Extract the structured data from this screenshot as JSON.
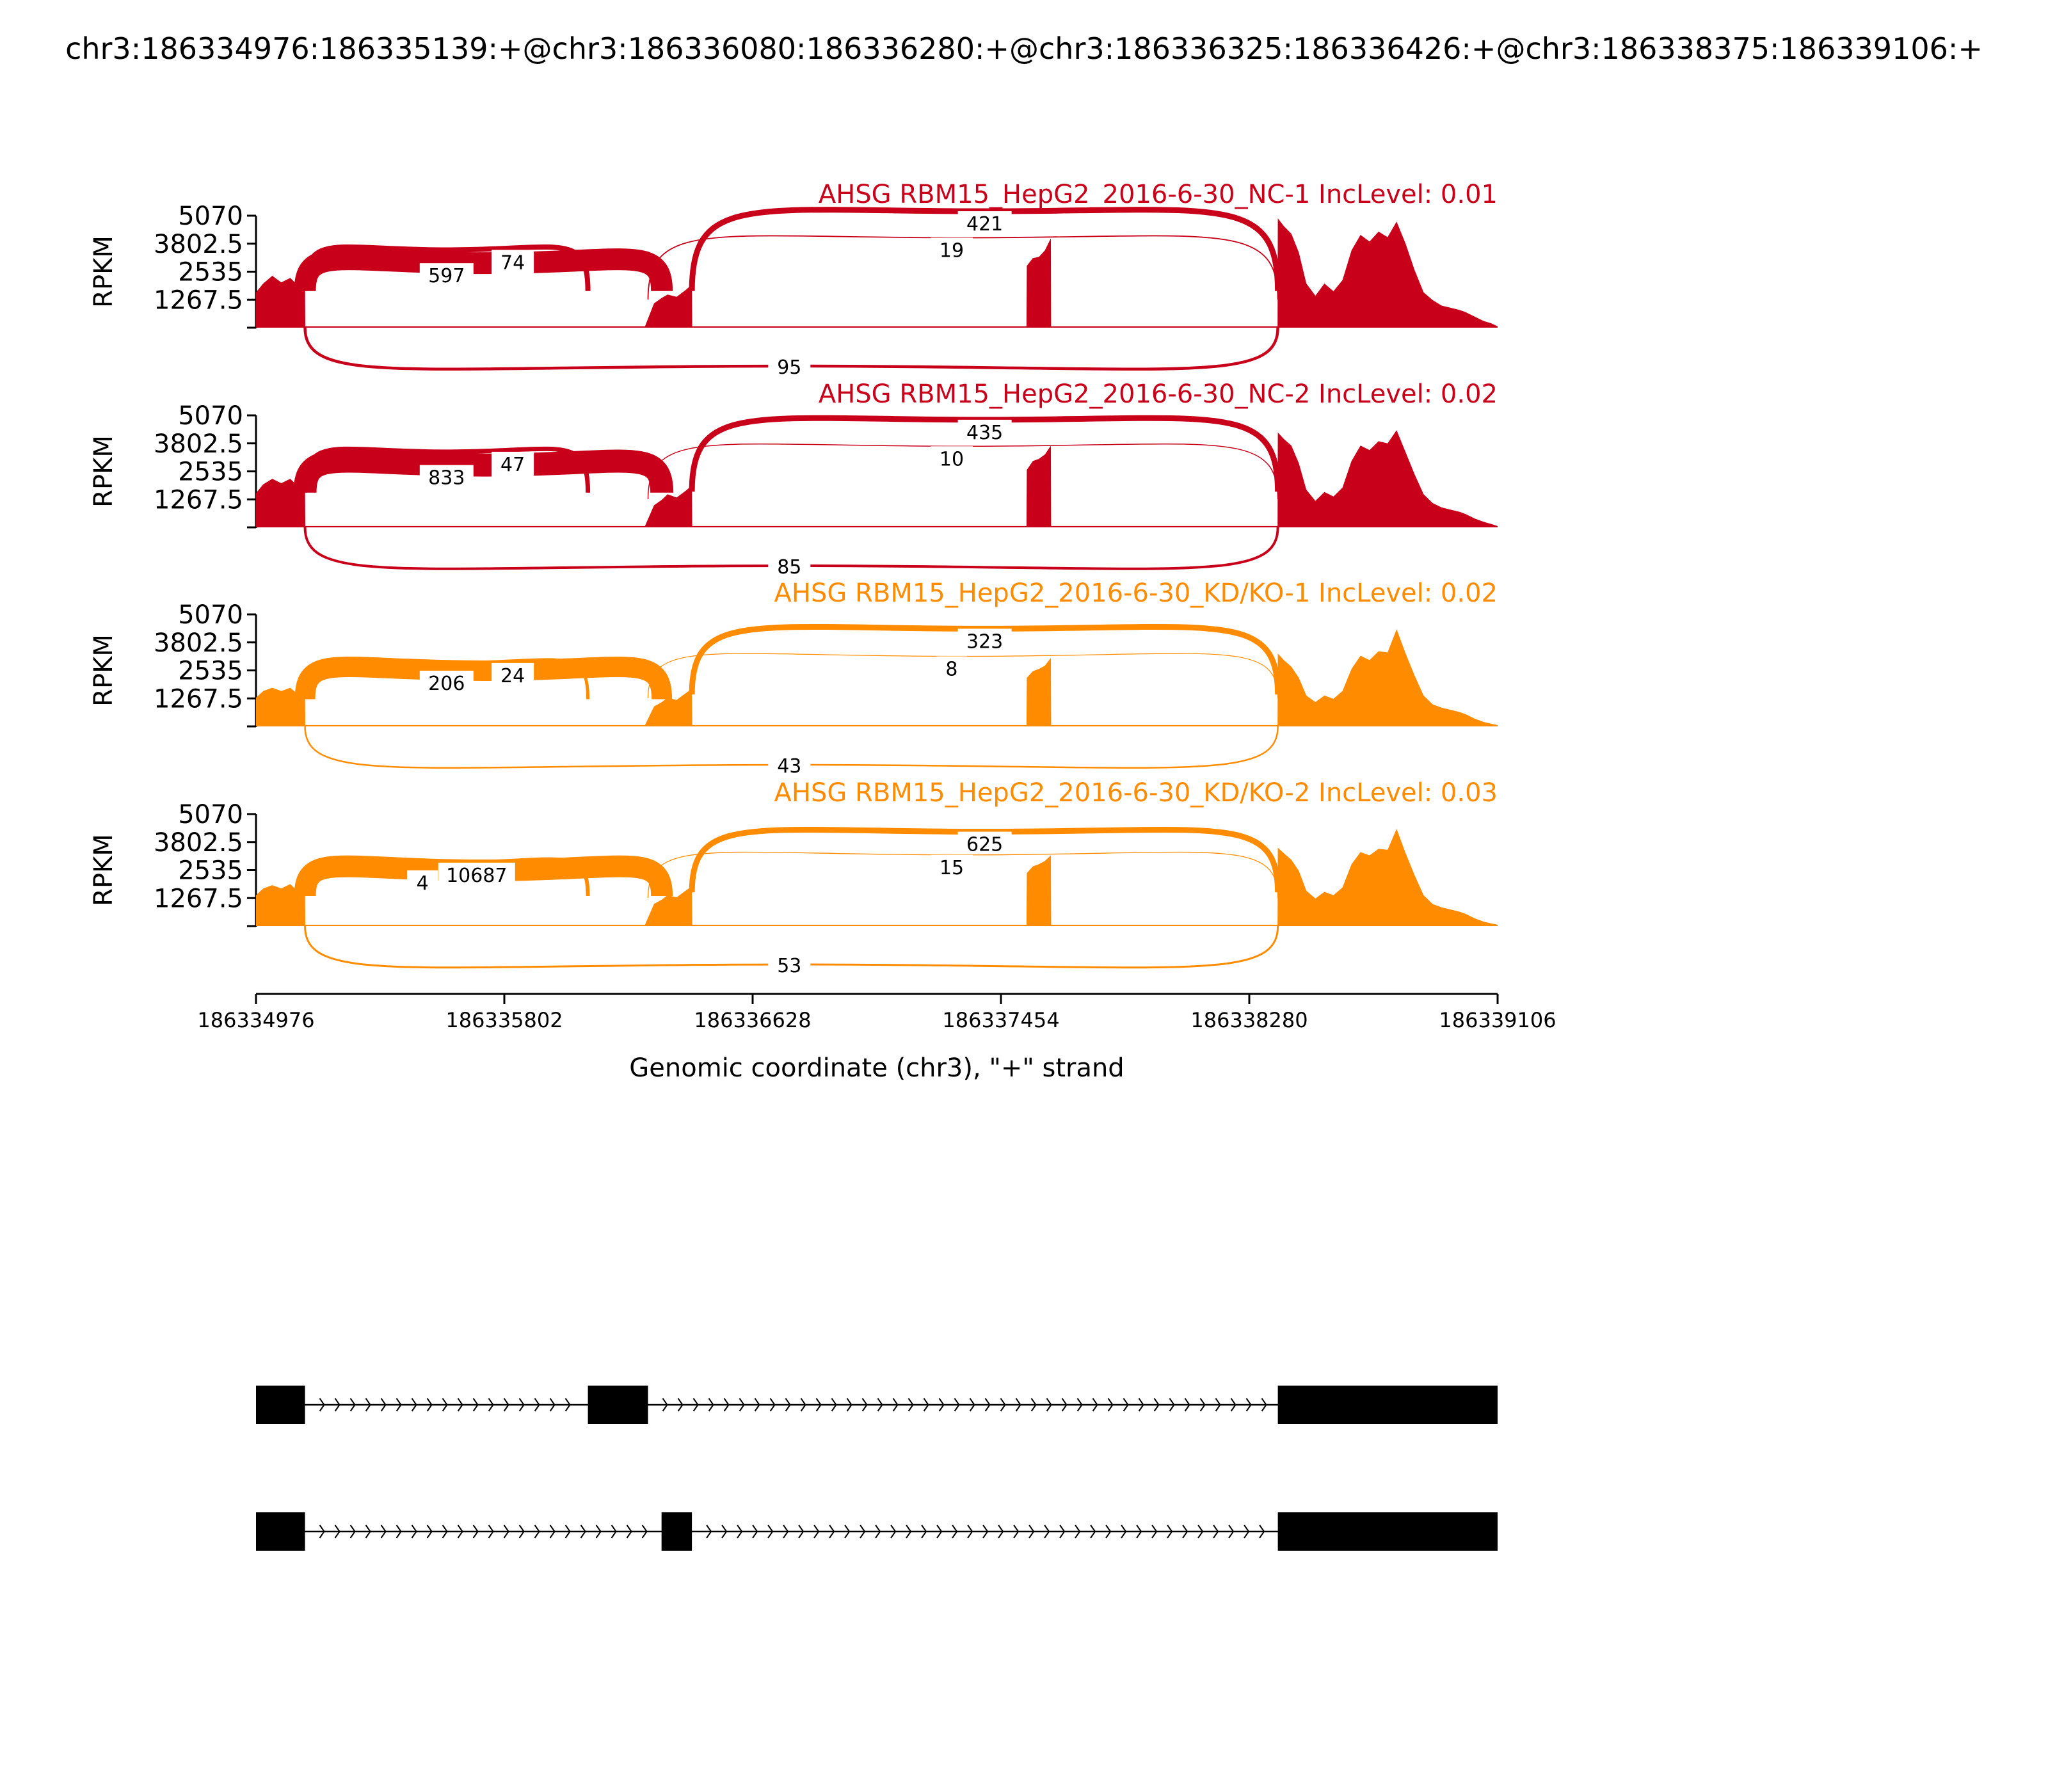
{
  "figure": {
    "title": "chr3:186334976:186335139:+@chr3:186336080:186336280:+@chr3:186336325:186336426:+@chr3:186338375:186339106:+",
    "colors": {
      "nc": "#c9001a",
      "kd": "#ff8c00",
      "axis": "#000000",
      "label_bg": "#ffffff"
    }
  },
  "chart_data": {
    "type": "area",
    "xlabel": "Genomic coordinate (chr3), \"+\" strand",
    "ylabel": "RPKM",
    "xlim": [
      186334976,
      186339106
    ],
    "xticks": [
      "186334976",
      "186335802",
      "186336628",
      "186337454",
      "186338280",
      "186339106"
    ],
    "ylim": [
      0,
      5070
    ],
    "yticks": [
      "5070",
      "3802.5",
      "2535",
      "1267.5"
    ],
    "grid": false,
    "exons": [
      {
        "start": 186334976,
        "end": 186335139
      },
      {
        "start": 186336080,
        "end": 186336280
      },
      {
        "start": 186336325,
        "end": 186336426
      },
      {
        "start": 186337540,
        "end": 186337620
      },
      {
        "start": 186338375,
        "end": 186339106
      }
    ],
    "coverage_x": [
      186334976,
      186335000,
      186335030,
      186335060,
      186335090,
      186335120,
      186335139,
      186335140,
      186336270,
      186336300,
      186336326,
      186336345,
      186336375,
      186336405,
      186336426,
      186336427,
      186337539,
      186337540,
      186337560,
      186337580,
      186337600,
      186337620,
      186337621,
      186338374,
      186338375,
      186338395,
      186338420,
      186338445,
      186338470,
      186338500,
      186338530,
      186338560,
      186338590,
      186338620,
      186338650,
      186338680,
      186338710,
      186338740,
      186338770,
      186338800,
      186338830,
      186338860,
      186338890,
      186338920,
      186338950,
      186338980,
      186339000,
      186339030,
      186339060,
      186339085,
      186339106
    ],
    "series": [
      {
        "name": "AHSG RBM15_HepG2_2016-6-30_NC-1 IncLevel: 0.01",
        "color": "#c9001a",
        "coverage": [
          1600,
          2000,
          2350,
          2050,
          2250,
          1850,
          1950,
          60,
          60,
          1100,
          1350,
          1500,
          1400,
          1700,
          1950,
          60,
          60,
          2800,
          3150,
          3200,
          3500,
          4050,
          60,
          60,
          4950,
          4600,
          4250,
          3400,
          2000,
          1450,
          2000,
          1650,
          2150,
          3500,
          4200,
          3900,
          4350,
          4100,
          4800,
          3800,
          2600,
          1600,
          1250,
          1000,
          900,
          800,
          700,
          500,
          300,
          200,
          60
        ],
        "junctions": [
          {
            "donor": 186335139,
            "acceptor": 186336326,
            "count": "597",
            "lw": 34,
            "side": "top",
            "lx": 186335610,
            "ly": 2400
          },
          {
            "donor": 186335139,
            "acceptor": 186336080,
            "count": "74",
            "lw": 8,
            "side": "top",
            "lx": 186335830,
            "ly": 3000
          },
          {
            "donor": 186336426,
            "acceptor": 186338375,
            "count": "421",
            "lw": 9,
            "side": "top",
            "lx": 186337400,
            "ly": 4750
          },
          {
            "donor": 186336280,
            "acceptor": 186338375,
            "count": "19",
            "lw": 1.8,
            "side": "top",
            "lx": 186337290,
            "ly": 3550
          },
          {
            "donor": 186335139,
            "acceptor": 186338375,
            "count": "95",
            "lw": 4.5,
            "side": "bottom",
            "lx": 186336750,
            "ly": -1500
          }
        ]
      },
      {
        "name": "AHSG RBM15_HepG2_2016-6-30_NC-2 IncLevel: 0.02",
        "color": "#c9001a",
        "coverage": [
          1550,
          1950,
          2200,
          2000,
          2200,
          1800,
          1850,
          60,
          60,
          1000,
          1250,
          1500,
          1350,
          1650,
          1900,
          60,
          60,
          2600,
          3000,
          3100,
          3300,
          3700,
          60,
          60,
          4300,
          4000,
          3700,
          2900,
          1700,
          1200,
          1600,
          1400,
          1800,
          3000,
          3700,
          3500,
          3900,
          3800,
          4400,
          3400,
          2400,
          1500,
          1100,
          900,
          800,
          700,
          600,
          400,
          250,
          150,
          60
        ],
        "junctions": [
          {
            "donor": 186335139,
            "acceptor": 186336326,
            "count": "833",
            "lw": 36,
            "side": "top",
            "lx": 186335610,
            "ly": 2300
          },
          {
            "donor": 186335139,
            "acceptor": 186336080,
            "count": "47",
            "lw": 7,
            "side": "top",
            "lx": 186335830,
            "ly": 2900
          },
          {
            "donor": 186336426,
            "acceptor": 186338375,
            "count": "435",
            "lw": 9,
            "side": "top",
            "lx": 186337400,
            "ly": 4350
          },
          {
            "donor": 186336280,
            "acceptor": 186338375,
            "count": "10",
            "lw": 1.5,
            "side": "top",
            "lx": 186337290,
            "ly": 3150
          },
          {
            "donor": 186335139,
            "acceptor": 186338375,
            "count": "85",
            "lw": 4,
            "side": "bottom",
            "lx": 186336750,
            "ly": -1300
          }
        ]
      },
      {
        "name": "AHSG RBM15_HepG2_2016-6-30_KD/KO-1 IncLevel: 0.02",
        "color": "#ff8c00",
        "coverage": [
          1300,
          1600,
          1750,
          1600,
          1750,
          1400,
          1450,
          60,
          60,
          900,
          1100,
          1300,
          1200,
          1500,
          1700,
          60,
          60,
          2200,
          2500,
          2600,
          2750,
          3100,
          60,
          60,
          3300,
          3000,
          2700,
          2200,
          1400,
          1100,
          1400,
          1250,
          1600,
          2600,
          3200,
          3000,
          3400,
          3350,
          4400,
          3300,
          2300,
          1400,
          1000,
          850,
          750,
          650,
          550,
          350,
          200,
          120,
          60
        ],
        "junctions": [
          {
            "donor": 186335139,
            "acceptor": 186336326,
            "count": "206",
            "lw": 32,
            "side": "top",
            "lx": 186335610,
            "ly": 2000
          },
          {
            "donor": 186335139,
            "acceptor": 186336080,
            "count": "24",
            "lw": 5,
            "side": "top",
            "lx": 186335830,
            "ly": 2350
          },
          {
            "donor": 186336426,
            "acceptor": 186338375,
            "count": "323",
            "lw": 9,
            "side": "top",
            "lx": 186337400,
            "ly": 3900
          },
          {
            "donor": 186336280,
            "acceptor": 186338375,
            "count": "8",
            "lw": 1.2,
            "side": "top",
            "lx": 186337290,
            "ly": 2650
          },
          {
            "donor": 186335139,
            "acceptor": 186338375,
            "count": "43",
            "lw": 2.5,
            "side": "bottom",
            "lx": 186336750,
            "ly": -1350
          }
        ]
      },
      {
        "name": "AHSG RBM15_HepG2_2016-6-30_KD/KO-2 IncLevel: 0.03",
        "color": "#ff8c00",
        "coverage": [
          1400,
          1700,
          1850,
          1700,
          1900,
          1500,
          1600,
          60,
          60,
          1000,
          1200,
          1400,
          1300,
          1600,
          1800,
          60,
          60,
          2400,
          2700,
          2800,
          2950,
          3200,
          60,
          60,
          3550,
          3300,
          3000,
          2500,
          1600,
          1250,
          1550,
          1400,
          1750,
          2800,
          3350,
          3200,
          3500,
          3450,
          4400,
          3300,
          2300,
          1400,
          1000,
          850,
          750,
          650,
          550,
          350,
          200,
          120,
          60
        ],
        "junctions": [
          {
            "donor": 186335139,
            "acceptor": 186336326,
            "count": "4",
            "lw": 34,
            "side": "top",
            "lx": 186335530,
            "ly": 2000
          },
          {
            "donor": 186335139,
            "acceptor": 186336080,
            "count": "10687",
            "lw": 6,
            "side": "top",
            "lx": 186335710,
            "ly": 2350
          },
          {
            "donor": 186336426,
            "acceptor": 186338375,
            "count": "625",
            "lw": 9,
            "side": "top",
            "lx": 186337400,
            "ly": 3750
          },
          {
            "donor": 186336280,
            "acceptor": 186338375,
            "count": "15",
            "lw": 1.3,
            "side": "top",
            "lx": 186337290,
            "ly": 2700
          },
          {
            "donor": 186335139,
            "acceptor": 186338375,
            "count": "53",
            "lw": 3,
            "side": "bottom",
            "lx": 186336750,
            "ly": -1350
          }
        ]
      }
    ],
    "isoforms": [
      {
        "exons": [
          [
            186334976,
            186335139
          ],
          [
            186336080,
            186336280
          ],
          [
            186338375,
            186339106
          ]
        ]
      },
      {
        "exons": [
          [
            186334976,
            186335139
          ],
          [
            186336325,
            186336426
          ],
          [
            186338375,
            186339106
          ]
        ]
      }
    ]
  }
}
